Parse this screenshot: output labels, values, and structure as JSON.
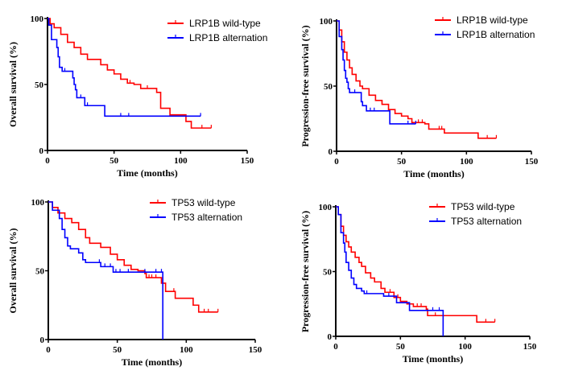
{
  "chart_data": [
    {
      "type": "line",
      "subtype": "kaplan-meier",
      "xlabel": "Time (months)",
      "ylabel": "Overall survival (%)",
      "xlim": [
        0,
        150
      ],
      "ylim": [
        0,
        100
      ],
      "xticks": [
        "0",
        "50",
        "100",
        "150"
      ],
      "yticks": [
        "0",
        "50",
        "100"
      ],
      "grid": false,
      "legend_position": "top-right",
      "series": [
        {
          "name": "LRP1B wild-type",
          "color": "#ff0000",
          "points": [
            [
              0,
              100
            ],
            [
              2,
              96
            ],
            [
              5,
              93
            ],
            [
              10,
              88
            ],
            [
              15,
              82
            ],
            [
              20,
              78
            ],
            [
              25,
              73
            ],
            [
              30,
              69
            ],
            [
              40,
              65
            ],
            [
              45,
              61
            ],
            [
              50,
              58
            ],
            [
              55,
              54
            ],
            [
              60,
              51
            ],
            [
              65,
              50
            ],
            [
              70,
              47
            ],
            [
              81,
              47
            ],
            [
              82,
              44
            ],
            [
              85,
              32
            ],
            [
              92,
              27
            ],
            [
              104,
              22
            ],
            [
              108,
              17
            ],
            [
              123,
              17
            ]
          ],
          "censored": [
            45,
            62,
            70,
            75,
            116,
            123
          ]
        },
        {
          "name": "LRP1B alternation",
          "color": "#0000ff",
          "points": [
            [
              0,
              100
            ],
            [
              1,
              95
            ],
            [
              3,
              84
            ],
            [
              6,
              84
            ],
            [
              7,
              78
            ],
            [
              8,
              71
            ],
            [
              9,
              63
            ],
            [
              11,
              60
            ],
            [
              19,
              55
            ],
            [
              20,
              50
            ],
            [
              21,
              46
            ],
            [
              22,
              40
            ],
            [
              28,
              34
            ],
            [
              43,
              26
            ],
            [
              115,
              26
            ]
          ],
          "censored": [
            13,
            25,
            30,
            55,
            61,
            115
          ]
        }
      ]
    },
    {
      "type": "line",
      "subtype": "kaplan-meier",
      "xlabel": "Time (months)",
      "ylabel": "Progression-free survival (%)",
      "xlim": [
        0,
        150
      ],
      "ylim": [
        0,
        100
      ],
      "xticks": [
        "0",
        "50",
        "100",
        "150"
      ],
      "yticks": [
        "0",
        "50",
        "100"
      ],
      "grid": false,
      "legend_position": "top-right",
      "series": [
        {
          "name": "LRP1B wild-type",
          "color": "#ff0000",
          "points": [
            [
              0,
              100
            ],
            [
              2,
              93
            ],
            [
              4,
              84
            ],
            [
              6,
              76
            ],
            [
              8,
              70
            ],
            [
              10,
              64
            ],
            [
              12,
              59
            ],
            [
              15,
              54
            ],
            [
              18,
              50
            ],
            [
              20,
              48
            ],
            [
              25,
              43
            ],
            [
              30,
              39
            ],
            [
              35,
              36
            ],
            [
              40,
              32
            ],
            [
              45,
              29
            ],
            [
              50,
              27
            ],
            [
              55,
              25
            ],
            [
              58,
              22
            ],
            [
              68,
              21
            ],
            [
              71,
              17
            ],
            [
              83,
              14
            ],
            [
              109,
              10
            ],
            [
              123,
              10
            ]
          ],
          "censored": [
            35,
            45,
            63,
            66,
            79,
            81,
            116,
            123
          ]
        },
        {
          "name": "LRP1B alternation",
          "color": "#0000ff",
          "points": [
            [
              0,
              100
            ],
            [
              2,
              88
            ],
            [
              4,
              78
            ],
            [
              5,
              70
            ],
            [
              6,
              62
            ],
            [
              7,
              56
            ],
            [
              8,
              53
            ],
            [
              9,
              48
            ],
            [
              10,
              45
            ],
            [
              18,
              45
            ],
            [
              19,
              38
            ],
            [
              20,
              35
            ],
            [
              23,
              31
            ],
            [
              41,
              31
            ],
            [
              41,
              21
            ],
            [
              61,
              21
            ]
          ],
          "censored": [
            14,
            26,
            29,
            55,
            61
          ]
        }
      ]
    },
    {
      "type": "line",
      "subtype": "kaplan-meier",
      "xlabel": "Time (months)",
      "ylabel": "Overall survival (%)",
      "xlim": [
        0,
        150
      ],
      "ylim": [
        0,
        100
      ],
      "xticks": [
        "0",
        "50",
        "100",
        "150"
      ],
      "yticks": [
        "0",
        "50",
        "100"
      ],
      "grid": false,
      "legend_position": "top-right",
      "series": [
        {
          "name": "TP53 wild-type",
          "color": "#ff0000",
          "points": [
            [
              0,
              100
            ],
            [
              3,
              96
            ],
            [
              7,
              92
            ],
            [
              12,
              88
            ],
            [
              17,
              85
            ],
            [
              22,
              80
            ],
            [
              27,
              74
            ],
            [
              30,
              70
            ],
            [
              38,
              67
            ],
            [
              45,
              62
            ],
            [
              50,
              58
            ],
            [
              55,
              54
            ],
            [
              60,
              51
            ],
            [
              65,
              50
            ],
            [
              70,
              48
            ],
            [
              71,
              45
            ],
            [
              81,
              45
            ],
            [
              82,
              41
            ],
            [
              85,
              35
            ],
            [
              92,
              30
            ],
            [
              105,
              25
            ],
            [
              109,
              20
            ],
            [
              123,
              20
            ]
          ],
          "censored": [
            73,
            75,
            78,
            91,
            113,
            116,
            123
          ]
        },
        {
          "name": "TP53 alternation",
          "color": "#0000ff",
          "points": [
            [
              0,
              100
            ],
            [
              3,
              94
            ],
            [
              8,
              88
            ],
            [
              10,
              80
            ],
            [
              12,
              74
            ],
            [
              14,
              68
            ],
            [
              16,
              66
            ],
            [
              22,
              63
            ],
            [
              25,
              58
            ],
            [
              27,
              56
            ],
            [
              38,
              53
            ],
            [
              47,
              49
            ],
            [
              83,
              49
            ],
            [
              83,
              0
            ]
          ],
          "censored": [
            37,
            41,
            45,
            49,
            52,
            58,
            70,
            78,
            82
          ]
        }
      ]
    },
    {
      "type": "line",
      "subtype": "kaplan-meier",
      "xlabel": "Time (months)",
      "ylabel": "Progression-free survival (%)",
      "xlim": [
        0,
        150
      ],
      "ylim": [
        0,
        100
      ],
      "xticks": [
        "0",
        "50",
        "100",
        "150"
      ],
      "yticks": [
        "0",
        "50",
        "100"
      ],
      "grid": false,
      "legend_position": "top-right",
      "series": [
        {
          "name": "TP53 wild-type",
          "color": "#ff0000",
          "points": [
            [
              0,
              100
            ],
            [
              2,
              94
            ],
            [
              4,
              85
            ],
            [
              6,
              78
            ],
            [
              8,
              73
            ],
            [
              10,
              69
            ],
            [
              12,
              65
            ],
            [
              15,
              61
            ],
            [
              18,
              57
            ],
            [
              20,
              54
            ],
            [
              23,
              49
            ],
            [
              27,
              45
            ],
            [
              30,
              42
            ],
            [
              35,
              37
            ],
            [
              38,
              34
            ],
            [
              45,
              30
            ],
            [
              50,
              27
            ],
            [
              55,
              25
            ],
            [
              60,
              23
            ],
            [
              70,
              21
            ],
            [
              71,
              16
            ],
            [
              109,
              11
            ],
            [
              123,
              11
            ]
          ],
          "censored": [
            42,
            48,
            63,
            66,
            77,
            116,
            123
          ]
        },
        {
          "name": "TP53 alternation",
          "color": "#0000ff",
          "points": [
            [
              0,
              100
            ],
            [
              2,
              94
            ],
            [
              4,
              80
            ],
            [
              6,
              72
            ],
            [
              7,
              65
            ],
            [
              8,
              57
            ],
            [
              10,
              51
            ],
            [
              12,
              45
            ],
            [
              14,
              40
            ],
            [
              16,
              37
            ],
            [
              20,
              35
            ],
            [
              22,
              33
            ],
            [
              37,
              33
            ],
            [
              37,
              31
            ],
            [
              47,
              26
            ],
            [
              57,
              26
            ],
            [
              57,
              20
            ],
            [
              83,
              20
            ],
            [
              83,
              0
            ]
          ],
          "censored": [
            24,
            41,
            75,
            80
          ]
        }
      ]
    }
  ]
}
